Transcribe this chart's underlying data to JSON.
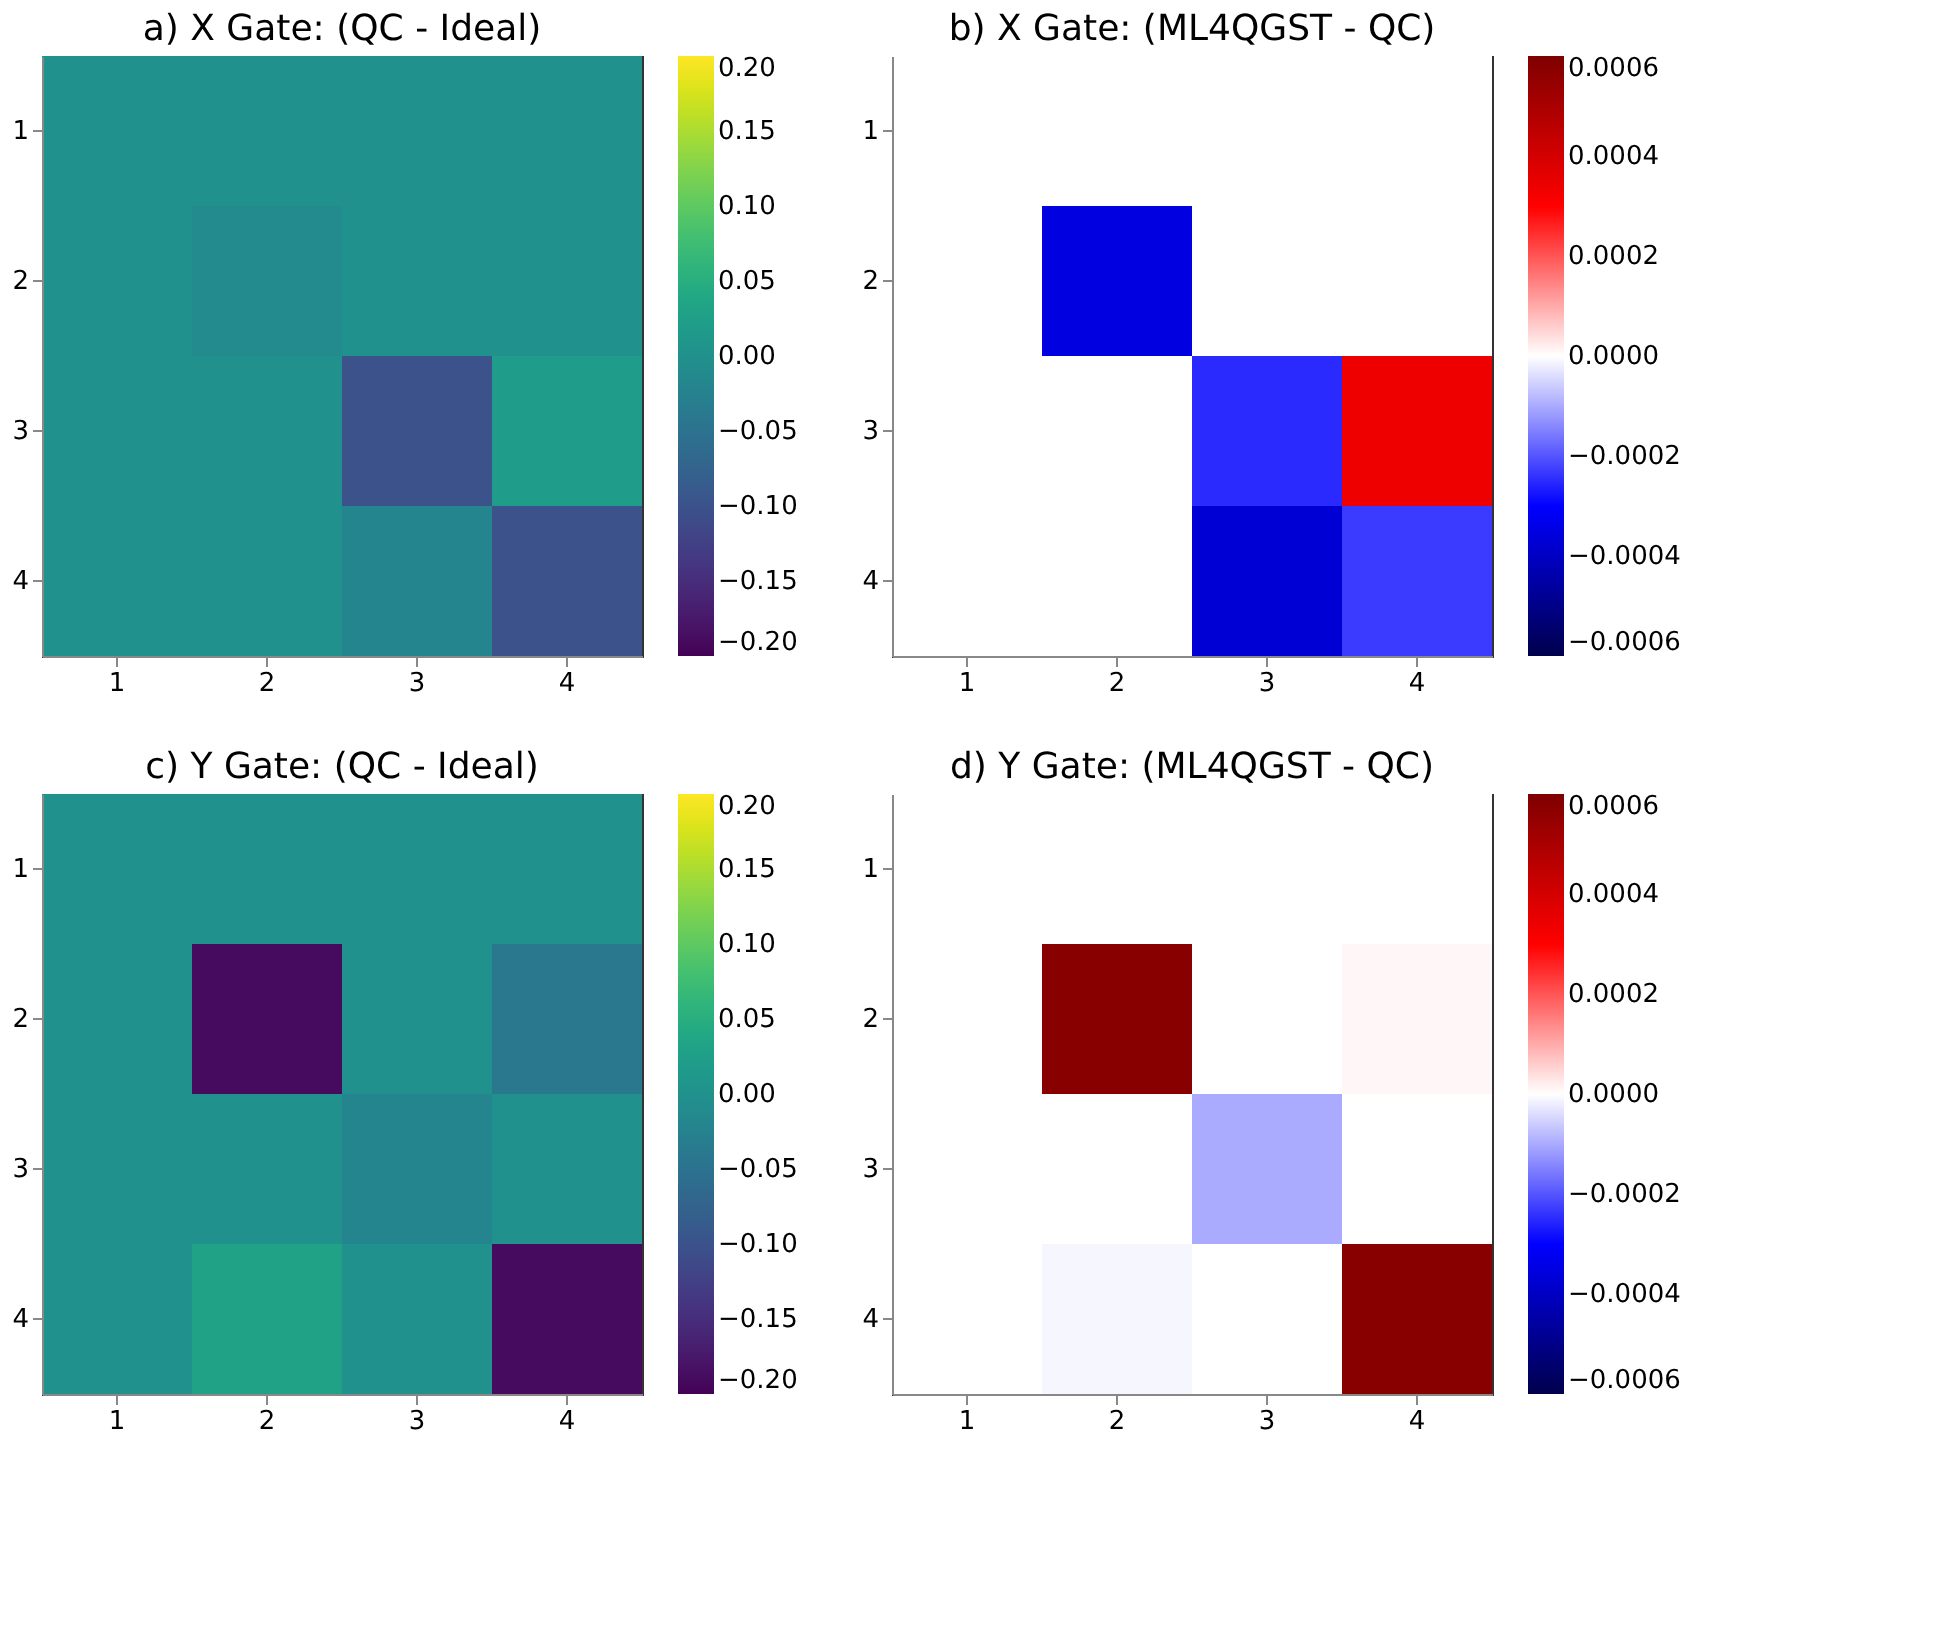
{
  "chart_data": [
    {
      "type": "heatmap",
      "title": "a) X Gate: (QC - Ideal)",
      "categories": [
        "1",
        "2",
        "3",
        "4"
      ],
      "y_categories": [
        "1",
        "2",
        "3",
        "4"
      ],
      "cells": [
        [
          0,
          0,
          0,
          0
        ],
        [
          0,
          -0.01,
          0,
          0
        ],
        [
          0,
          0,
          -0.1,
          0.02
        ],
        [
          0,
          0,
          -0.02,
          -0.1
        ]
      ],
      "clim": [
        -0.2,
        0.2
      ],
      "cticks": [
        {
          "value": -0.2,
          "label": "−0.20"
        },
        {
          "value": -0.15,
          "label": "−0.15"
        },
        {
          "value": -0.1,
          "label": "−0.10"
        },
        {
          "value": -0.05,
          "label": "−0.05"
        },
        {
          "value": 0,
          "label": "0.00"
        },
        {
          "value": 0.05,
          "label": "0.05"
        },
        {
          "value": 0.1,
          "label": "0.10"
        },
        {
          "value": 0.15,
          "label": "0.15"
        },
        {
          "value": 0.2,
          "label": "0.20"
        }
      ],
      "grid": false
    },
    {
      "type": "heatmap",
      "title": "b) X Gate: (ML4QGST - QC)",
      "categories": [
        "1",
        "2",
        "3",
        "4"
      ],
      "y_categories": [
        "1",
        "2",
        "3",
        "4"
      ],
      "cells": [
        [
          0,
          0,
          0,
          0
        ],
        [
          0,
          -0.00035,
          0,
          0
        ],
        [
          0,
          0,
          -0.00025,
          0.00034
        ],
        [
          0,
          0,
          -0.00037,
          -0.00023
        ]
      ],
      "clim": [
        -0.0006,
        0.0006
      ],
      "cticks": [
        {
          "value": -0.0006,
          "label": "−0.0006"
        },
        {
          "value": -0.0004,
          "label": "−0.0004"
        },
        {
          "value": -0.0002,
          "label": "−0.0002"
        },
        {
          "value": 0,
          "label": "0.0000"
        },
        {
          "value": 0.0002,
          "label": "0.0002"
        },
        {
          "value": 0.0004,
          "label": "0.0004"
        },
        {
          "value": 0.0006,
          "label": "0.0006"
        }
      ],
      "grid": false
    },
    {
      "type": "heatmap",
      "title": "c) Y Gate: (QC - Ideal)",
      "categories": [
        "1",
        "2",
        "3",
        "4"
      ],
      "y_categories": [
        "1",
        "2",
        "3",
        "4"
      ],
      "cells": [
        [
          0,
          0,
          0,
          0
        ],
        [
          0,
          -0.19,
          0,
          -0.04
        ],
        [
          0,
          0,
          -0.02,
          0
        ],
        [
          0,
          0.03,
          0,
          -0.19
        ]
      ],
      "clim": [
        -0.2,
        0.2
      ],
      "cticks": [
        {
          "value": -0.2,
          "label": "−0.20"
        },
        {
          "value": -0.15,
          "label": "−0.15"
        },
        {
          "value": -0.1,
          "label": "−0.10"
        },
        {
          "value": -0.05,
          "label": "−0.05"
        },
        {
          "value": 0,
          "label": "0.00"
        },
        {
          "value": 0.05,
          "label": "0.05"
        },
        {
          "value": 0.1,
          "label": "0.10"
        },
        {
          "value": 0.15,
          "label": "0.15"
        },
        {
          "value": 0.2,
          "label": "0.20"
        }
      ],
      "grid": false
    },
    {
      "type": "heatmap",
      "title": "d) Y Gate: (ML4QGST - QC)",
      "categories": [
        "1",
        "2",
        "3",
        "4"
      ],
      "y_categories": [
        "1",
        "2",
        "3",
        "4"
      ],
      "cells": [
        [
          0,
          0,
          0,
          0
        ],
        [
          0,
          0.00058,
          0,
          1e-05
        ],
        [
          0,
          0,
          -0.0001,
          0
        ],
        [
          0,
          -1e-05,
          0,
          0.00058
        ]
      ],
      "clim": [
        -0.0006,
        0.0006
      ],
      "cticks": [
        {
          "value": -0.0006,
          "label": "−0.0006"
        },
        {
          "value": -0.0004,
          "label": "−0.0004"
        },
        {
          "value": -0.0002,
          "label": "−0.0002"
        },
        {
          "value": 0,
          "label": "0.0000"
        },
        {
          "value": 0.0002,
          "label": "0.0002"
        },
        {
          "value": 0.0004,
          "label": "0.0004"
        },
        {
          "value": 0.0006,
          "label": "0.0006"
        }
      ],
      "grid": false
    }
  ]
}
